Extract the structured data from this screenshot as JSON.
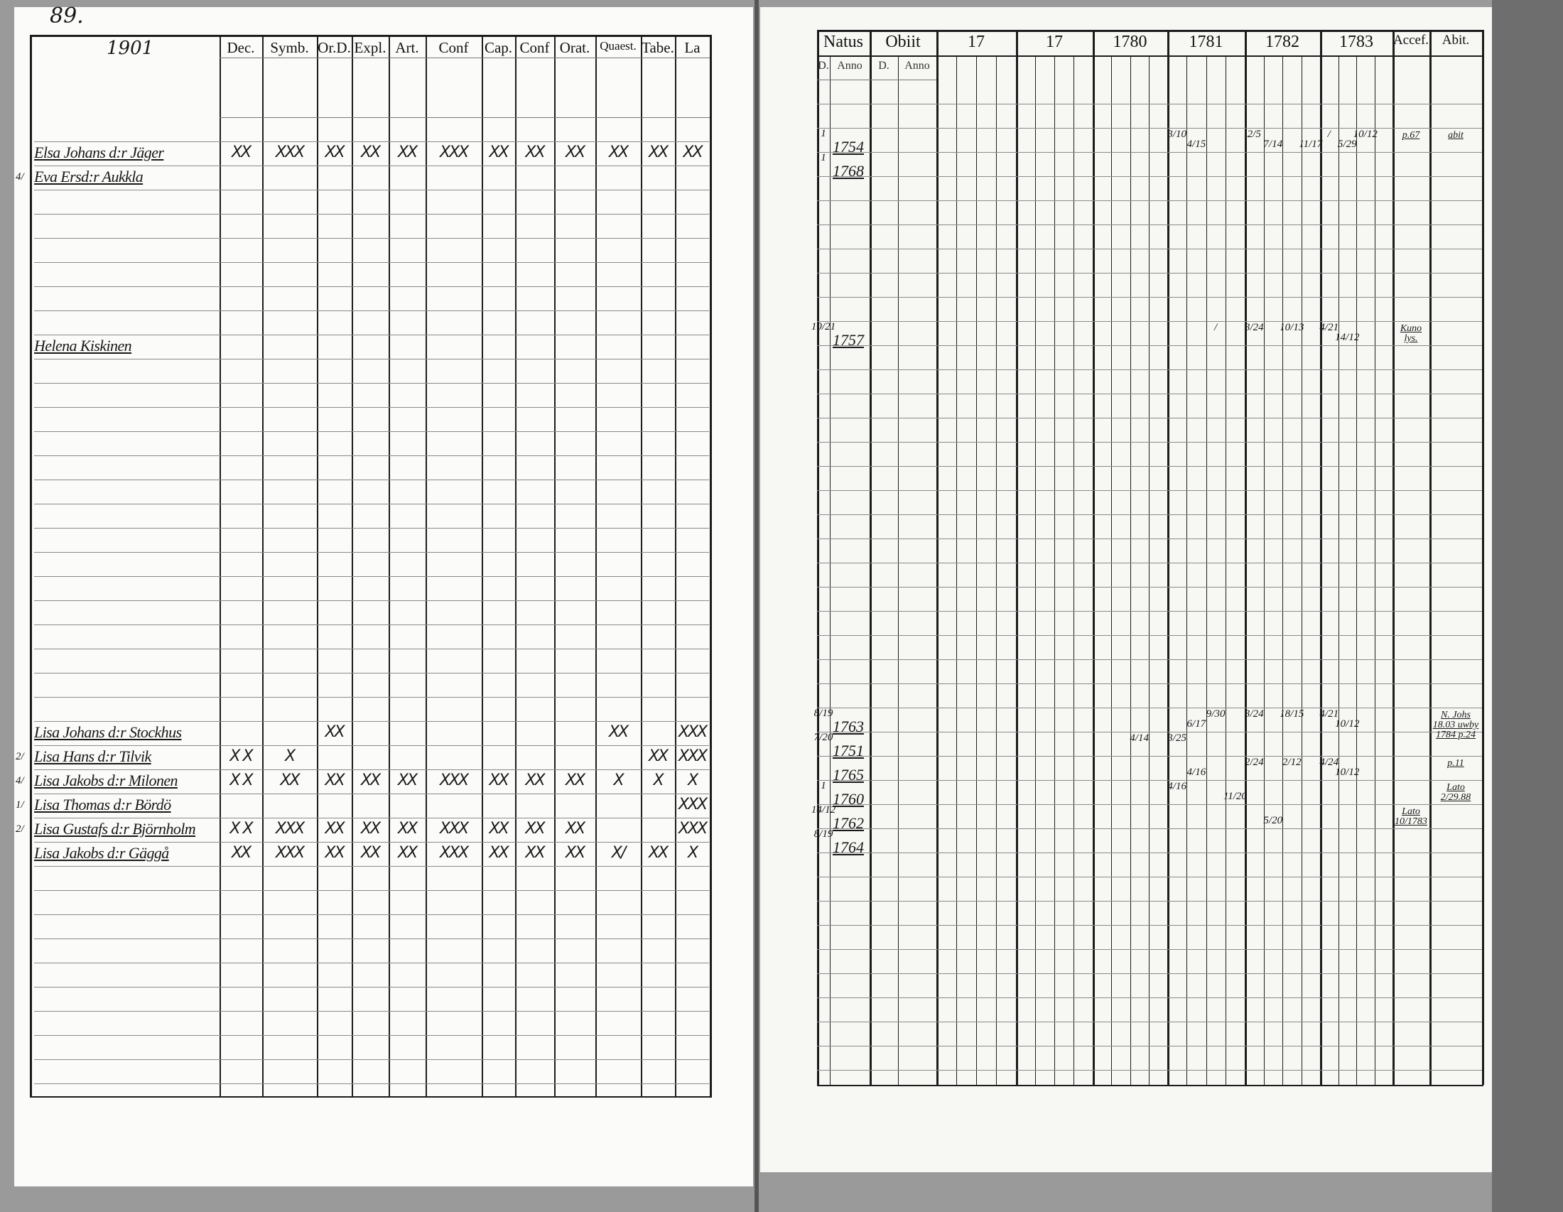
{
  "left_page": {
    "page_number": "89.",
    "corner_note": "1901",
    "columns": [
      "Dec.",
      "Symb.",
      "Or.D.",
      "Expl.",
      "Art.",
      "Conf",
      "Cap.",
      "Conf",
      "Orat.",
      "Quaest.",
      "Tabe.",
      "La"
    ],
    "entries": [
      {
        "name": "Elsa Johans d:r Jäger",
        "marks": [
          "XX",
          "XXX",
          "XX",
          "XX",
          "XX",
          "XXX",
          "XX",
          "XX",
          "XX",
          "XX",
          "XX",
          "XX"
        ]
      },
      {
        "name": "Eva Ersd:r Aukkla",
        "margin": "4/",
        "marks": [
          "",
          "",
          "",
          "",
          "",
          "",
          "",
          "",
          "",
          "",
          "",
          ""
        ]
      },
      {
        "name": "Helena Kiskinen",
        "marks": [
          "",
          "",
          "",
          "",
          "",
          "",
          "",
          "",
          "",
          "",
          "",
          ""
        ]
      },
      {
        "name": "Lisa Johans d:r Stockhus",
        "marks": [
          "",
          "",
          "XX",
          "",
          "",
          "",
          "",
          "",
          "",
          "XX",
          "",
          "XXX"
        ]
      },
      {
        "name": "Lisa Hans d:r Tilvik",
        "margin": "2/",
        "marks": [
          "X X",
          "X",
          "",
          "",
          "",
          "",
          "",
          "",
          "",
          "",
          "XX",
          "XXX"
        ]
      },
      {
        "name": "Lisa Jakobs d:r Milonen",
        "margin": "4/",
        "marks": [
          "X X",
          "XX",
          "XX",
          "XX",
          "XX",
          "XXX",
          "XX",
          "XX",
          "XX",
          "X",
          "X",
          "X"
        ]
      },
      {
        "name": "Lisa Thomas d:r Bördö",
        "margin": "1/",
        "marks": [
          "",
          "",
          "",
          "",
          "",
          "",
          "",
          "",
          "",
          "",
          "",
          "XXX"
        ]
      },
      {
        "name": "Lisa Gustafs d:r Björnholm",
        "margin": "2/",
        "marks": [
          "X X",
          "XXX",
          "XX",
          "XX",
          "XX",
          "XXX",
          "XX",
          "XX",
          "XX",
          "",
          "",
          "XXX"
        ]
      },
      {
        "name": "Lisa Jakobs d:r Gäggå",
        "marks": [
          "XX",
          "XXX",
          "XX",
          "XX",
          "XX",
          "XXX",
          "XX",
          "XX",
          "XX",
          "X/",
          "XX",
          "X"
        ]
      }
    ]
  },
  "right_page": {
    "columns": [
      "Natus",
      "Obiit",
      "17",
      "17",
      "1780",
      "1781",
      "1782",
      "1783",
      "Accef.",
      "Abit."
    ],
    "sub_columns": {
      "natus": [
        "D.",
        "Anno"
      ],
      "obiit": [
        "D.",
        "Anno"
      ]
    },
    "entries": [
      {
        "natus_day": "1",
        "natus_year": "1754",
        "y1781": [
          "3/10",
          "4/15",
          "",
          ""
        ],
        "y1782": [
          "2/5",
          "7/14",
          "",
          "11/17"
        ],
        "y1783": [
          "/",
          "5/29",
          "10/12",
          ""
        ],
        "accef": "p.67",
        "abit": "abit"
      },
      {
        "natus_day": "1",
        "natus_year": "1768"
      },
      {
        "natus_day": "10/21",
        "natus_year": "1757",
        "y1781": [
          "",
          "",
          "/",
          ""
        ],
        "y1782": [
          "3/24",
          "",
          "10/13",
          ""
        ],
        "y1783": [
          "4/21",
          "14/12",
          "",
          ""
        ],
        "accef": "Kuno lys."
      },
      {
        "natus_day": "8/19",
        "natus_year": "1763",
        "y1781": [
          "",
          "6/17",
          "9/30",
          ""
        ],
        "y1782": [
          "3/24",
          "",
          "18/15",
          ""
        ],
        "y1783": [
          "4/21",
          "10/12",
          "",
          ""
        ],
        "abit": "N. Johs 18.03 uwby 1784 p.24"
      },
      {
        "natus_day": "7/20",
        "natus_year": "1751",
        "y1780": [
          "",
          "",
          "4/14",
          ""
        ],
        "y1781": [
          "3/25",
          "",
          "",
          ""
        ]
      },
      {
        "natus_day": "",
        "natus_year": "1765",
        "y1781": [
          "",
          "4/16",
          "",
          ""
        ],
        "y1782": [
          "2/24",
          "",
          "2/12",
          ""
        ],
        "y1783": [
          "4/24",
          "10/12",
          "",
          ""
        ],
        "abit": "p.11"
      },
      {
        "natus_day": "1",
        "natus_year": "1760",
        "y1781": [
          "4/16",
          "",
          "",
          "11/20"
        ],
        "abit": "Lato 2/29.88"
      },
      {
        "natus_day": "14/12",
        "natus_year": "1762",
        "y1782": [
          "",
          "5/20",
          "",
          ""
        ],
        "accef": "Lato 10/1783"
      },
      {
        "natus_day": "8/19",
        "natus_year": "1764"
      }
    ]
  },
  "colors": {
    "paper": "#fbfbf9",
    "ink": "#1c1c1c",
    "scan_background": "#9a9a9a"
  }
}
